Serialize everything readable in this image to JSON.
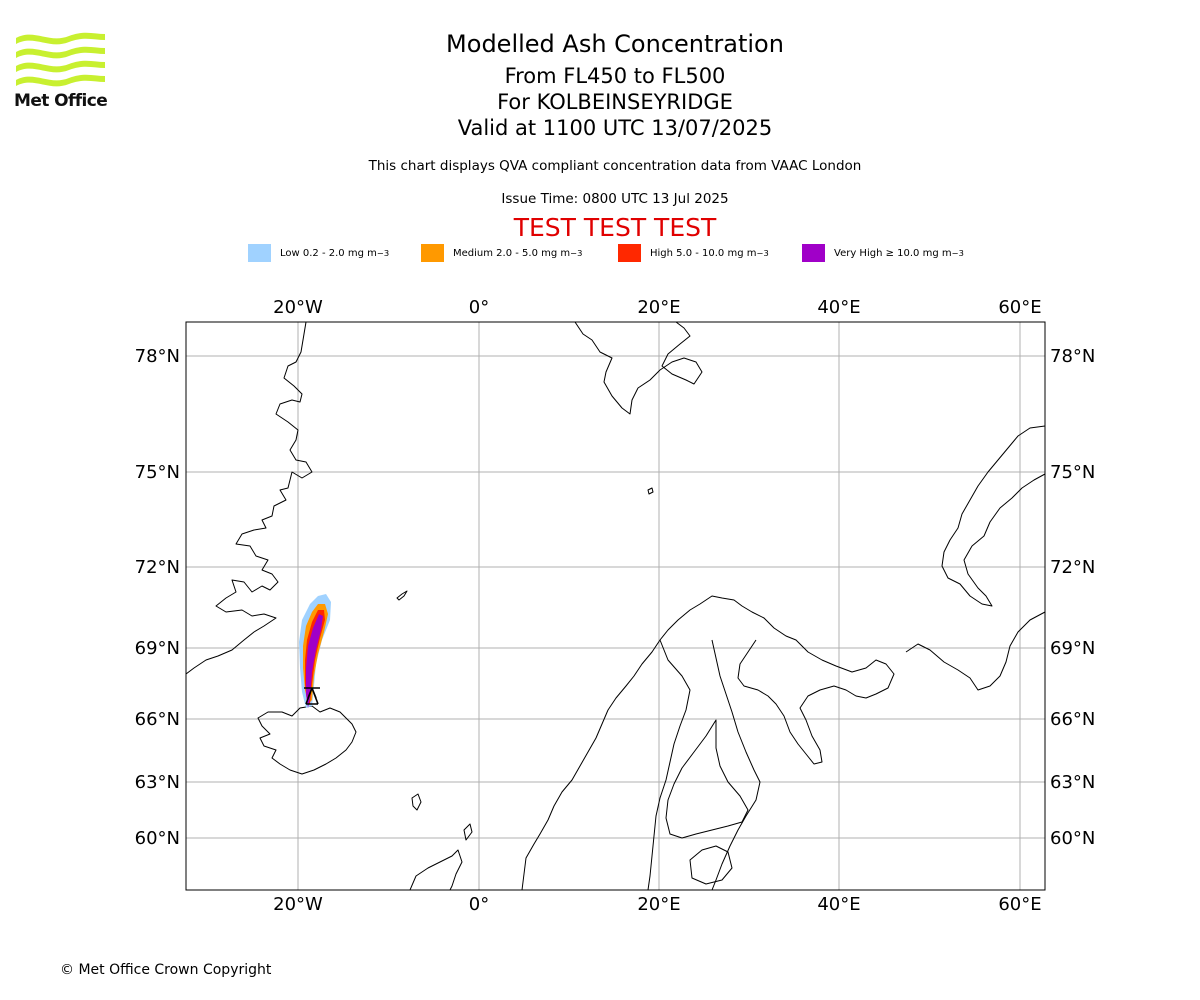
{
  "logo": {
    "name": "Met Office",
    "color": "#c8f030"
  },
  "title": {
    "line1": "Modelled Ash Concentration",
    "line2": "From FL450 to FL500",
    "line3": "For KOLBEINSEYRIDGE",
    "line4": "Valid at 1100 UTC 13/07/2025"
  },
  "subtitle": {
    "compliance": "This chart displays QVA compliant concentration data from VAAC London",
    "issue_time": "Issue Time: 0800 UTC 13 Jul 2025"
  },
  "test_banner": "TEST TEST TEST",
  "legend": [
    {
      "label": "Low 0.2 - 2.0 mg m",
      "color": "#a0d2ff"
    },
    {
      "label": "Medium 2.0 - 5.0 mg m",
      "color": "#ff9900"
    },
    {
      "label": "High 5.0 - 10.0 mg m",
      "color": "#ff2800"
    },
    {
      "label": "Very High ≥ 10.0 mg m",
      "color": "#a000c8"
    }
  ],
  "legend_unit_sup": "−3",
  "map": {
    "lon_labels": [
      "20°W",
      "0°",
      "20°E",
      "40°E",
      "60°E"
    ],
    "lat_labels": [
      "78°N",
      "75°N",
      "72°N",
      "69°N",
      "66°N",
      "63°N",
      "60°N"
    ],
    "volcano_symbol": "volcano-marker"
  },
  "copyright": "© Met Office Crown Copyright"
}
